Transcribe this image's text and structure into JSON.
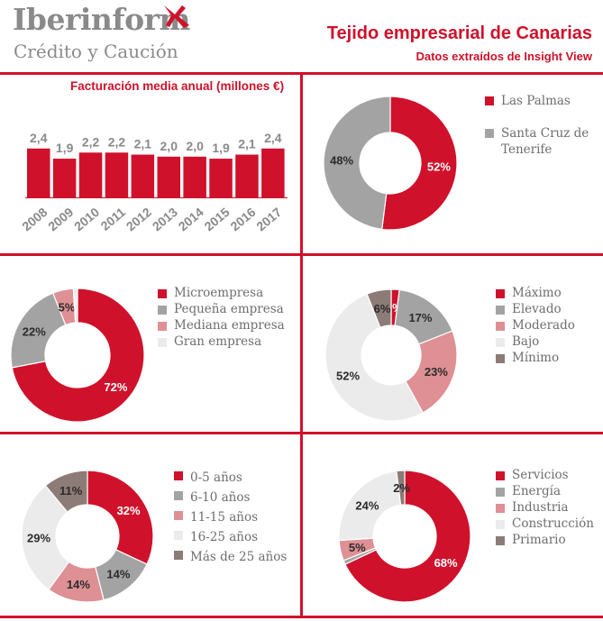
{
  "header": {
    "brand": "Iberinform",
    "brand_sub": "Crédito y Caución",
    "title": "Tejido empresarial de Canarias",
    "subtitle": "Datos extraídos de Insight View"
  },
  "colors": {
    "accent": "#d0112b",
    "grey": "#a3a3a3",
    "pink": "#df9094",
    "light": "#ebebeb",
    "brown": "#8c7b76"
  },
  "chart_data": [
    {
      "type": "bar",
      "title": "Facturación media anual (millones €)",
      "categories": [
        "2008",
        "2009",
        "2010",
        "2011",
        "2012",
        "2013",
        "2014",
        "2015",
        "2016",
        "2017"
      ],
      "values": [
        2.4,
        1.9,
        2.2,
        2.2,
        2.1,
        2.0,
        2.0,
        1.9,
        2.1,
        2.4
      ],
      "value_labels": [
        "2,4",
        "1,9",
        "2,2",
        "2,2",
        "2,1",
        "2,0",
        "2,0",
        "1,9",
        "2,1",
        "2,4"
      ],
      "ylim": [
        0,
        7
      ],
      "color": "#d0112b"
    },
    {
      "type": "pie",
      "legend": [
        {
          "label": "Las Palmas",
          "value": 52,
          "color": "#d0112b"
        },
        {
          "label": "Santa Cruz de Tenerife",
          "value": 48,
          "color": "#a3a3a3"
        }
      ],
      "slice_labels": [
        "52%",
        "48%"
      ]
    },
    {
      "type": "pie",
      "legend": [
        {
          "label": "Microempresa",
          "value": 72,
          "color": "#d0112b"
        },
        {
          "label": "Pequeña empresa",
          "value": 22,
          "color": "#a3a3a3"
        },
        {
          "label": "Mediana empresa",
          "value": 5,
          "color": "#df9094"
        },
        {
          "label": "Gran empresa",
          "value": 1,
          "color": "#ebebeb"
        }
      ],
      "slice_labels": [
        "72%",
        "22%",
        "5%",
        ""
      ]
    },
    {
      "type": "pie",
      "legend": [
        {
          "label": "Máximo",
          "value": 2,
          "color": "#d0112b"
        },
        {
          "label": "Elevado",
          "value": 17,
          "color": "#a3a3a3"
        },
        {
          "label": "Moderado",
          "value": 23,
          "color": "#df9094"
        },
        {
          "label": "Bajo",
          "value": 52,
          "color": "#ebebeb"
        },
        {
          "label": "Mínimo",
          "value": 6,
          "color": "#8c7b76"
        }
      ],
      "slice_labels": [
        "2%",
        "17%",
        "23%",
        "52%",
        "6%"
      ]
    },
    {
      "type": "pie",
      "legend": [
        {
          "label": "0-5 años",
          "value": 32,
          "color": "#d0112b"
        },
        {
          "label": "6-10 años",
          "value": 14,
          "color": "#a3a3a3"
        },
        {
          "label": "11-15 años",
          "value": 14,
          "color": "#df9094"
        },
        {
          "label": "16-25 años",
          "value": 29,
          "color": "#ebebeb"
        },
        {
          "label": "Más de 25 años",
          "value": 11,
          "color": "#8c7b76"
        }
      ],
      "slice_labels": [
        "32%",
        "14%",
        "14%",
        "29%",
        "11%"
      ]
    },
    {
      "type": "pie",
      "legend": [
        {
          "label": "Servicios",
          "value": 68,
          "color": "#d0112b"
        },
        {
          "label": "Energía",
          "value": 1,
          "color": "#a3a3a3"
        },
        {
          "label": "Industria",
          "value": 5,
          "color": "#df9094"
        },
        {
          "label": "Construcción",
          "value": 24,
          "color": "#ebebeb"
        },
        {
          "label": "Primario",
          "value": 2,
          "color": "#8c7b76"
        }
      ],
      "slice_labels": [
        "68%",
        "",
        "5%",
        "24%",
        "2%"
      ]
    }
  ]
}
